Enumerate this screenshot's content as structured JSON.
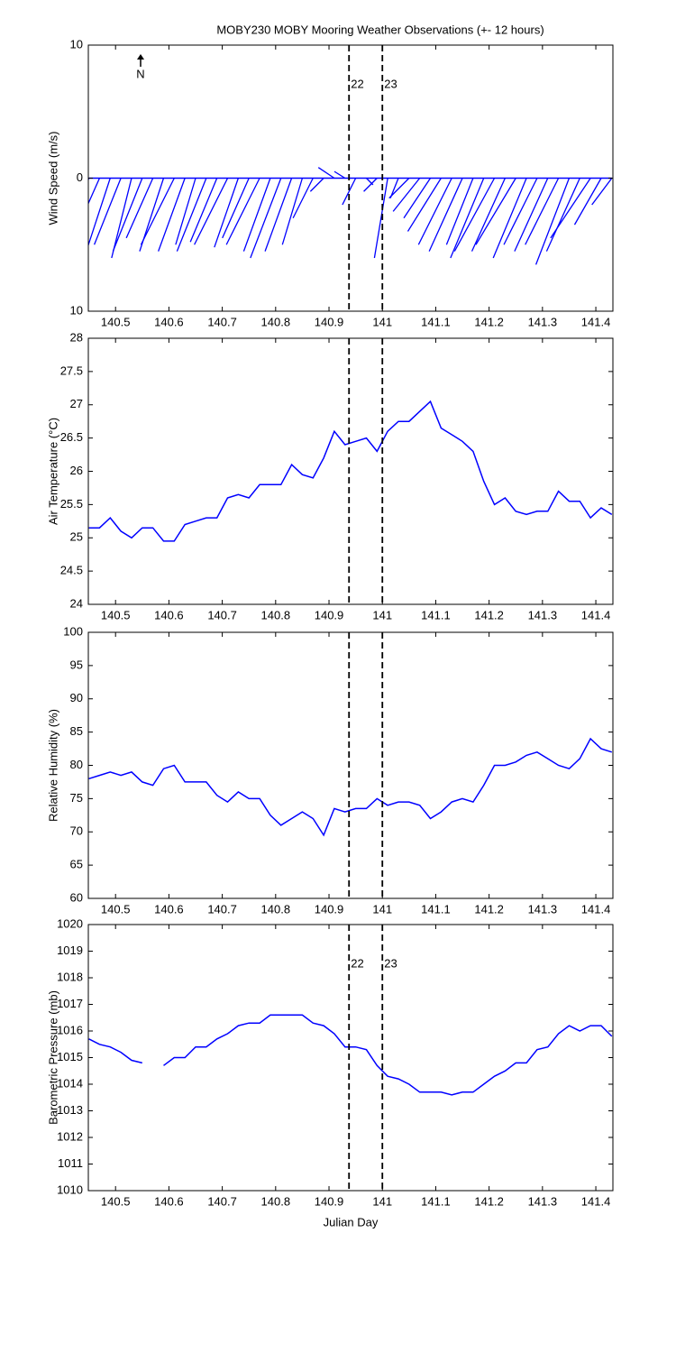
{
  "chart_data": [
    {
      "type": "wind-stick",
      "title": "MOBY230 MOBY Mooring Weather Observations (+- 12 hours)",
      "ylabel": "Wind Speed (m/s)",
      "north_label": "N",
      "xlim": [
        140.449,
        141.432
      ],
      "xticks": [
        140.5,
        140.6,
        140.7,
        140.8,
        140.9,
        141,
        141.1,
        141.2,
        141.3,
        141.4
      ],
      "ylim": [
        -10,
        10
      ],
      "yticks": [
        {
          "value": -10,
          "label": "10"
        },
        0,
        10
      ],
      "vlines": [
        140.9375,
        141.0
      ],
      "vline_labels": [
        "22",
        "23"
      ],
      "color": "#0000ff",
      "x": [
        140.45,
        140.47,
        140.49,
        140.51,
        140.53,
        140.55,
        140.57,
        140.59,
        140.61,
        140.63,
        140.65,
        140.67,
        140.69,
        140.71,
        140.73,
        140.75,
        140.77,
        140.79,
        140.81,
        140.83,
        140.85,
        140.87,
        140.89,
        140.91,
        140.93,
        140.95,
        140.97,
        140.99,
        141.01,
        141.03,
        141.05,
        141.07,
        141.09,
        141.11,
        141.13,
        141.15,
        141.17,
        141.19,
        141.21,
        141.23,
        141.25,
        141.27,
        141.29,
        141.31,
        141.33,
        141.35,
        141.37,
        141.39,
        141.41,
        141.43
      ],
      "u": [
        -1.5,
        -2.0,
        -1.8,
        -2.0,
        -1.5,
        -2.2,
        -2.0,
        -1.8,
        -2.5,
        -2.0,
        -1.5,
        -2.2,
        -2.0,
        -2.5,
        -1.8,
        -2.0,
        -2.5,
        -2.0,
        -2.3,
        -2.0,
        -1.5,
        -1.5,
        -1.0,
        -1.2,
        -0.8,
        -1.0,
        0.5,
        -1.0,
        -1.0,
        -0.6,
        -1.5,
        -2.0,
        -2.0,
        -2.5,
        -2.5,
        -2.5,
        -2.0,
        -2.5,
        -3.0,
        -2.5,
        -3.0,
        -2.5,
        -2.5,
        -2.5,
        -2.5,
        -2.5,
        -2.5,
        -3.0,
        -2.0,
        -1.5
      ],
      "v": [
        -4,
        -4.5,
        -5.5,
        -5,
        -6,
        -5.5,
        -4.5,
        -5.5,
        -5,
        -5.5,
        -5,
        -5.5,
        -4.8,
        -5,
        -5.2,
        -4.5,
        -5,
        -5.5,
        -6,
        -5.5,
        -5,
        -3,
        -1,
        0.8,
        0.5,
        -2,
        -0.5,
        -1,
        -6,
        -1.5,
        -1.5,
        -2.5,
        -3,
        -4,
        -5,
        -5.5,
        -5,
        -6,
        -5.5,
        -5.5,
        -5,
        -6,
        -5,
        -5.5,
        -5,
        -6.5,
        -5.5,
        -4.5,
        -3.5,
        -2
      ]
    },
    {
      "type": "line",
      "ylabel": "Air Temperature (°C)",
      "xlim": [
        140.449,
        141.432
      ],
      "xticks": [
        140.5,
        140.6,
        140.7,
        140.8,
        140.9,
        141,
        141.1,
        141.2,
        141.3,
        141.4
      ],
      "ylim": [
        24,
        28
      ],
      "yticks": [
        24,
        24.5,
        25,
        25.5,
        26,
        26.5,
        27,
        27.5,
        28
      ],
      "vlines": [
        140.9375,
        141.0
      ],
      "color": "#0000ff",
      "x": [
        140.45,
        140.47,
        140.49,
        140.51,
        140.53,
        140.55,
        140.57,
        140.59,
        140.61,
        140.63,
        140.65,
        140.67,
        140.69,
        140.71,
        140.73,
        140.75,
        140.77,
        140.79,
        140.81,
        140.83,
        140.85,
        140.87,
        140.89,
        140.91,
        140.93,
        140.95,
        140.97,
        140.99,
        141.01,
        141.03,
        141.05,
        141.07,
        141.09,
        141.11,
        141.13,
        141.15,
        141.17,
        141.19,
        141.21,
        141.23,
        141.25,
        141.27,
        141.29,
        141.31,
        141.33,
        141.35,
        141.37,
        141.39,
        141.41,
        141.43
      ],
      "values": [
        25.15,
        25.15,
        25.3,
        25.1,
        25.0,
        25.15,
        25.15,
        24.95,
        24.95,
        25.2,
        25.25,
        25.3,
        25.3,
        25.6,
        25.65,
        25.6,
        25.8,
        25.8,
        25.8,
        26.1,
        25.95,
        25.9,
        26.2,
        26.6,
        26.4,
        26.45,
        26.5,
        26.3,
        26.6,
        26.75,
        26.75,
        26.9,
        27.05,
        26.65,
        26.55,
        26.45,
        26.3,
        25.85,
        25.5,
        25.6,
        25.4,
        25.35,
        25.4,
        25.4,
        25.7,
        25.55,
        25.55,
        25.3,
        25.45,
        25.35
      ]
    },
    {
      "type": "line",
      "ylabel": "Relative Humidity (%)",
      "xlim": [
        140.449,
        141.432
      ],
      "xticks": [
        140.5,
        140.6,
        140.7,
        140.8,
        140.9,
        141,
        141.1,
        141.2,
        141.3,
        141.4
      ],
      "ylim": [
        60,
        100
      ],
      "yticks": [
        60,
        65,
        70,
        75,
        80,
        85,
        90,
        95,
        100
      ],
      "vlines": [
        140.9375,
        141.0
      ],
      "color": "#0000ff",
      "x": [
        140.45,
        140.47,
        140.49,
        140.51,
        140.53,
        140.55,
        140.57,
        140.59,
        140.61,
        140.63,
        140.65,
        140.67,
        140.69,
        140.71,
        140.73,
        140.75,
        140.77,
        140.79,
        140.81,
        140.83,
        140.85,
        140.87,
        140.89,
        140.91,
        140.93,
        140.95,
        140.97,
        140.99,
        141.01,
        141.03,
        141.05,
        141.07,
        141.09,
        141.11,
        141.13,
        141.15,
        141.17,
        141.19,
        141.21,
        141.23,
        141.25,
        141.27,
        141.29,
        141.31,
        141.33,
        141.35,
        141.37,
        141.39,
        141.41,
        141.43
      ],
      "values": [
        78,
        78.5,
        79,
        78.5,
        79,
        77.5,
        77,
        79.5,
        80,
        77.5,
        77.5,
        77.5,
        75.5,
        74.5,
        76,
        75,
        75,
        72.5,
        71,
        72,
        73,
        72,
        69.5,
        73.5,
        73,
        73.5,
        73.5,
        75,
        74,
        74.5,
        74.5,
        74,
        72,
        73,
        74.5,
        75,
        74.5,
        77,
        80,
        80,
        80.5,
        81.5,
        82,
        81,
        80,
        79.5,
        81,
        84,
        82.5,
        82
      ]
    },
    {
      "type": "line",
      "ylabel": "Barometric Pressure (mb)",
      "xlabel": "Julian Day",
      "xlim": [
        140.449,
        141.432
      ],
      "xticks": [
        140.5,
        140.6,
        140.7,
        140.8,
        140.9,
        141,
        141.1,
        141.2,
        141.3,
        141.4
      ],
      "ylim": [
        1010,
        1020
      ],
      "yticks": [
        1010,
        1011,
        1012,
        1013,
        1014,
        1015,
        1016,
        1017,
        1018,
        1019,
        1020
      ],
      "vlines": [
        140.9375,
        141.0
      ],
      "vline_labels": [
        "22",
        "23"
      ],
      "color": "#0000ff",
      "x": [
        140.45,
        140.47,
        140.49,
        140.51,
        140.53,
        140.55,
        140.57,
        140.59,
        140.61,
        140.63,
        140.65,
        140.67,
        140.69,
        140.71,
        140.73,
        140.75,
        140.77,
        140.79,
        140.81,
        140.83,
        140.85,
        140.87,
        140.89,
        140.91,
        140.93,
        140.95,
        140.97,
        140.99,
        141.01,
        141.03,
        141.05,
        141.07,
        141.09,
        141.11,
        141.13,
        141.15,
        141.17,
        141.19,
        141.21,
        141.23,
        141.25,
        141.27,
        141.29,
        141.31,
        141.33,
        141.35,
        141.37,
        141.39,
        141.41,
        141.43
      ],
      "values": [
        1015.7,
        1015.5,
        1015.4,
        1015.2,
        1014.9,
        1014.8,
        null,
        1014.7,
        1015.0,
        1015.0,
        1015.4,
        1015.4,
        1015.7,
        1015.9,
        1016.2,
        1016.3,
        1016.3,
        1016.6,
        1016.6,
        1016.6,
        1016.6,
        1016.3,
        1016.2,
        1015.9,
        1015.4,
        1015.4,
        1015.3,
        1014.7,
        1014.3,
        1014.2,
        1014.0,
        1013.7,
        1013.7,
        1013.7,
        1013.6,
        1013.7,
        1013.7,
        1014.0,
        1014.3,
        1014.5,
        1014.8,
        1014.8,
        1015.3,
        1015.4,
        1015.9,
        1016.2,
        1016.0,
        1016.2,
        1016.2,
        1015.8
      ]
    }
  ]
}
